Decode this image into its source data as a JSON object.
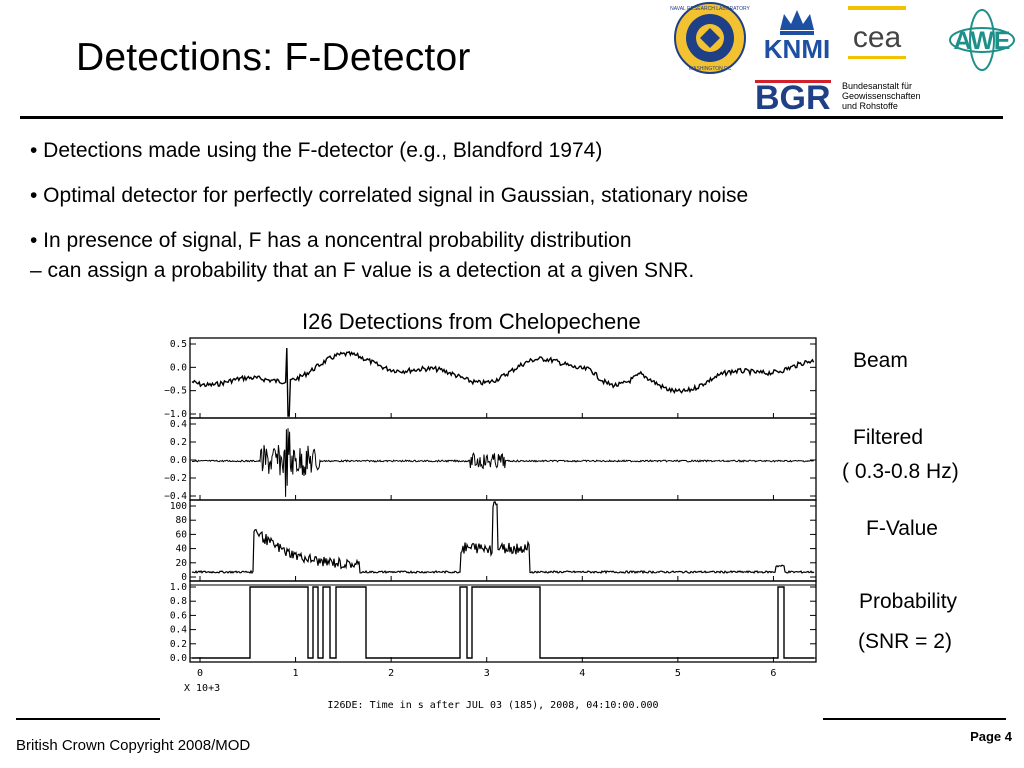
{
  "title": "Detections: F-Detector",
  "bullets": [
    "• Detections made using the F-detector (e.g., Blandford 1974)",
    "• Optimal detector for perfectly correlated signal in Gaussian, stationary noise",
    "• In presence of signal, F has a noncentral probability distribution",
    " – can assign a probability that an F value is a detection at a given SNR."
  ],
  "figure": {
    "title": "I26 Detections from Chelopechene",
    "panel_labels": {
      "beam": "Beam",
      "filtered": "Filtered",
      "filtered_band": "( 0.3-0.8 Hz)",
      "fvalue": "F-Value",
      "probability": "Probability",
      "snr": "(SNR = 2)"
    },
    "beam_ticks": [
      "0.5",
      "0.0",
      "−0.5",
      "−1.0"
    ],
    "filtered_ticks": [
      "0.4",
      "0.2",
      "0.0",
      "−0.2",
      "−0.4"
    ],
    "fvalue_ticks": [
      "100",
      "80",
      "60",
      "40",
      "20",
      "0"
    ],
    "prob_ticks": [
      "1.0",
      "0.8",
      "0.6",
      "0.4",
      "0.2",
      "0.0"
    ],
    "x_ticks": [
      "0",
      "1",
      "2",
      "3",
      "4",
      "5",
      "6"
    ],
    "x_multiplier": "X 10+3",
    "x_label": "I26DE: Time in s after JUL 03 (185), 2008, 04:10:00.000"
  },
  "logos": {
    "nrl_text": "NAVAL RESEARCH LABORATORY",
    "nrl_sub": "WASHINGTON DC",
    "knmi": "KNMI",
    "cea": "cea",
    "awe": "AWE",
    "bgr": "BGR",
    "bgr_name_1": "Bundesanstalt für",
    "bgr_name_2": "Geowissenschaften",
    "bgr_name_3": "und Rohstoffe"
  },
  "footer": {
    "copyright": "British Crown Copyright 2008/MOD",
    "page": "Page 4"
  },
  "colors": {
    "nrl_gold": "#f2c230",
    "nrl_blue": "#1f3f86",
    "knmi_blue": "#1d4fa3",
    "cea_yellow": "#f2c200",
    "awe_teal": "#1f8f8a",
    "bgr_blue": "#1f3f86",
    "bgr_red": "#d4202a"
  }
}
